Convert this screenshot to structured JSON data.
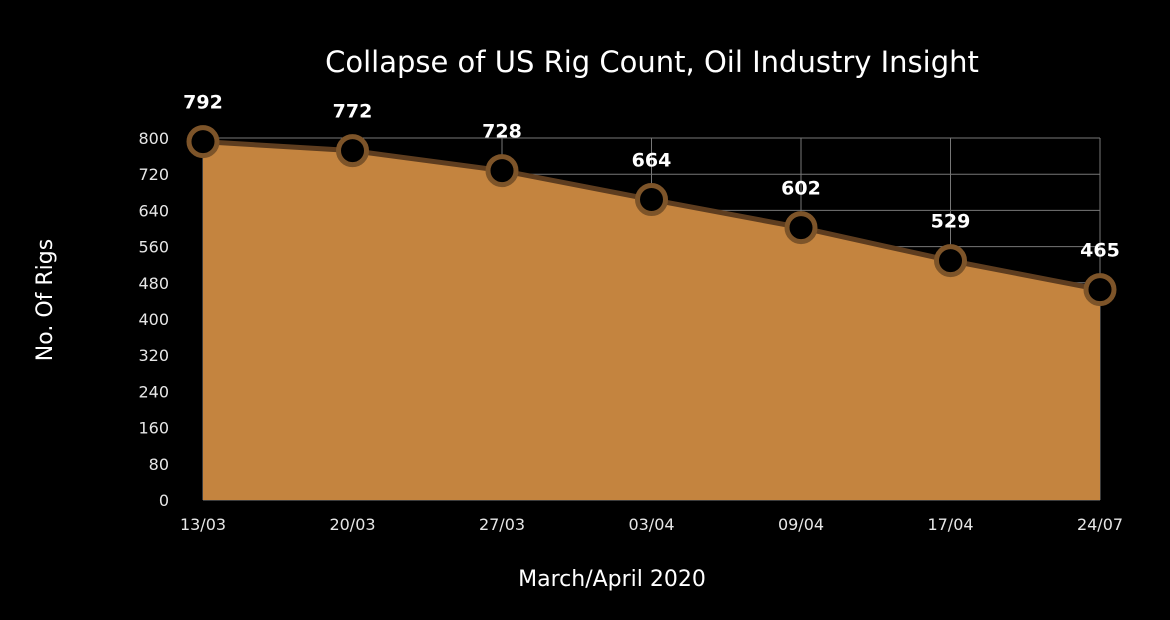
{
  "chart_data": {
    "type": "area",
    "title": "Collapse of US Rig Count, Oil Industry Insight",
    "xlabel": "March/April 2020",
    "ylabel": "No. Of Rigs",
    "categories": [
      "13/03",
      "20/03",
      "27/03",
      "03/04",
      "09/04",
      "17/04",
      "24/07"
    ],
    "values": [
      792,
      772,
      728,
      664,
      602,
      529,
      465
    ],
    "data_labels": [
      "792",
      "772",
      "728",
      "664",
      "602",
      "529",
      "465"
    ],
    "ylim": [
      0,
      800
    ],
    "yticks": [
      0,
      80,
      160,
      240,
      320,
      400,
      480,
      560,
      640,
      720,
      800
    ],
    "grid": true,
    "legend": "none",
    "colors": {
      "area": "#c4843f",
      "line": "#5e3d1f",
      "marker_stroke": "#7d5429",
      "marker_fill": "#000000",
      "grid": "#777777"
    }
  }
}
